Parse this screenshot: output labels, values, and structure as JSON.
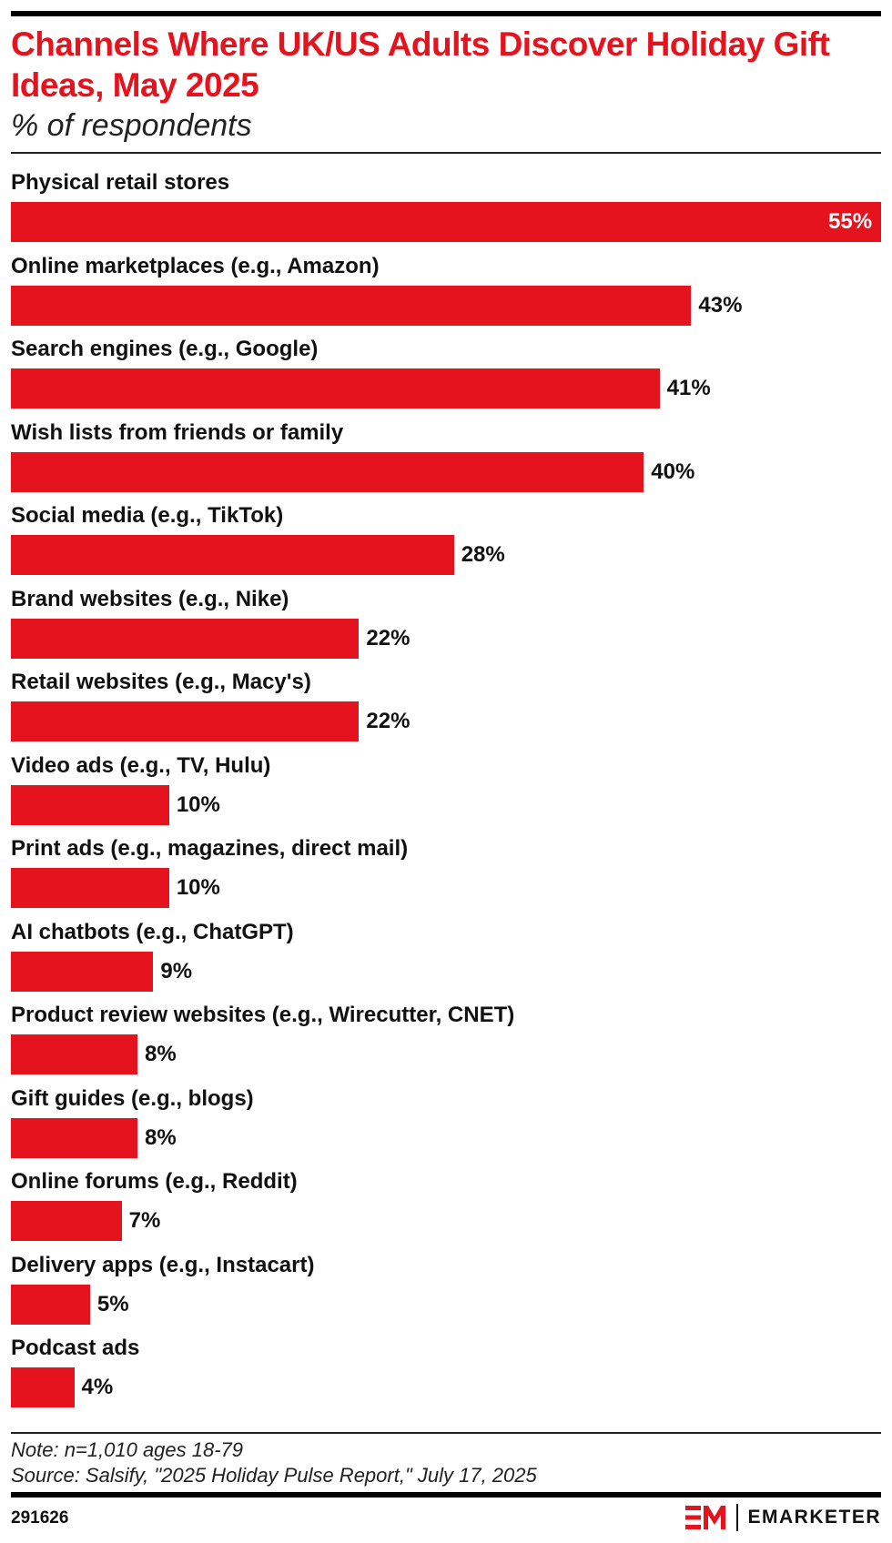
{
  "header": {
    "title": "Channels Where UK/US Adults Discover Holiday Gift Ideas, May 2025",
    "subtitle": "% of respondents"
  },
  "chart_data": {
    "type": "bar",
    "orientation": "horizontal",
    "categories": [
      "Physical retail stores",
      "Online marketplaces (e.g., Amazon)",
      "Search engines (e.g., Google)",
      "Wish lists from friends or family",
      "Social media (e.g., TikTok)",
      "Brand websites (e.g., Nike)",
      "Retail websites (e.g., Macy's)",
      "Video ads (e.g., TV, Hulu)",
      "Print ads (e.g., magazines, direct mail)",
      "AI chatbots (e.g., ChatGPT)",
      "Product review websites (e.g., Wirecutter, CNET)",
      "Gift guides (e.g., blogs)",
      "Online forums (e.g., Reddit)",
      "Delivery apps (e.g., Instacart)",
      "Podcast ads"
    ],
    "values": [
      55,
      43,
      41,
      40,
      28,
      22,
      22,
      10,
      10,
      9,
      8,
      8,
      7,
      5,
      4
    ],
    "value_labels": [
      "55%",
      "43%",
      "41%",
      "40%",
      "28%",
      "22%",
      "22%",
      "10%",
      "10%",
      "9%",
      "8%",
      "8%",
      "7%",
      "5%",
      "4%"
    ],
    "unit": "%",
    "xlim": [
      0,
      55
    ],
    "grid": false,
    "legend": "none",
    "bar_color": "#e5131d"
  },
  "footer": {
    "note": "Note: n=1,010 ages 18-79",
    "source": "Source: Salsify, \"2025 Holiday Pulse Report,\" July 17, 2025",
    "chart_id": "291626",
    "brand": "EMARKETER"
  },
  "colors": {
    "accent": "#e5131d",
    "text": "#111111"
  }
}
